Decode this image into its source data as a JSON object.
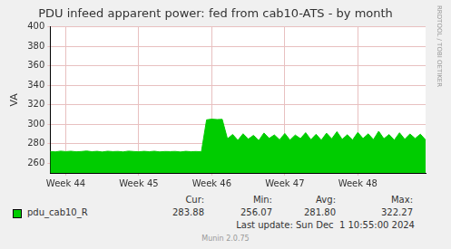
{
  "chart_data": {
    "type": "area",
    "title": "PDU infeed apparent power: fed from cab10-ATS - by month",
    "y_label": "VA",
    "categories": [
      null,
      null,
      null,
      "Week 44",
      null,
      null,
      null,
      null,
      null,
      null,
      null,
      null,
      null,
      null,
      null,
      null,
      null,
      "Week 45",
      null,
      null,
      null,
      null,
      null,
      null,
      null,
      null,
      null,
      null,
      null,
      null,
      null,
      "Week 46",
      null,
      null,
      null,
      null,
      null,
      null,
      null,
      null,
      null,
      null,
      null,
      null,
      null,
      "Week 47",
      null,
      null,
      null,
      null,
      null,
      null,
      null,
      null,
      null,
      null,
      null,
      null,
      null,
      "Week 48",
      null,
      null,
      null,
      null,
      null,
      null,
      null,
      null,
      null,
      null,
      null,
      null,
      null
    ],
    "series": [
      {
        "name": "pdu_cab10_R",
        "color": "#00cc00",
        "values": [
          272.1,
          271.6,
          272.4,
          271.9,
          272.3,
          271.7,
          272.0,
          272.5,
          271.8,
          272.2,
          271.5,
          272.3,
          271.9,
          272.1,
          271.6,
          272.4,
          272.0,
          271.7,
          272.2,
          271.8,
          272.3,
          271.6,
          272.0,
          271.9,
          272.1,
          271.5,
          272.2,
          271.8,
          272.0,
          271.7,
          304.5,
          305.2,
          304.8,
          305.0,
          285.0,
          289.5,
          283.5,
          290.2,
          284.8,
          288.6,
          283.2,
          291.0,
          285.5,
          289.0,
          284.0,
          290.5,
          283.8,
          288.9,
          285.2,
          291.3,
          284.1,
          289.7,
          283.6,
          290.8,
          285.0,
          292.4,
          284.5,
          289.2,
          283.9,
          291.6,
          285.3,
          290.1,
          284.2,
          292.8,
          285.1,
          289.4,
          283.7,
          291.2,
          284.6,
          290.0,
          285.4,
          289.8,
          283.88
        ]
      }
    ],
    "ylim": [
      250,
      400
    ],
    "yticks": [
      260,
      280,
      300,
      320,
      340,
      360,
      380,
      400
    ],
    "grid": true
  },
  "legend_table": {
    "headers": [
      "Cur:",
      "Min:",
      "Avg:",
      "Max:"
    ],
    "values": [
      [
        "283.88",
        "256.07",
        "281.80",
        "322.27"
      ]
    ]
  },
  "last_update": "Last update: Sun Dec  1 10:55:00 2024",
  "footer": "Munin 2.0.75",
  "watermark": "RRDTOOL / TOBI OETIKER"
}
